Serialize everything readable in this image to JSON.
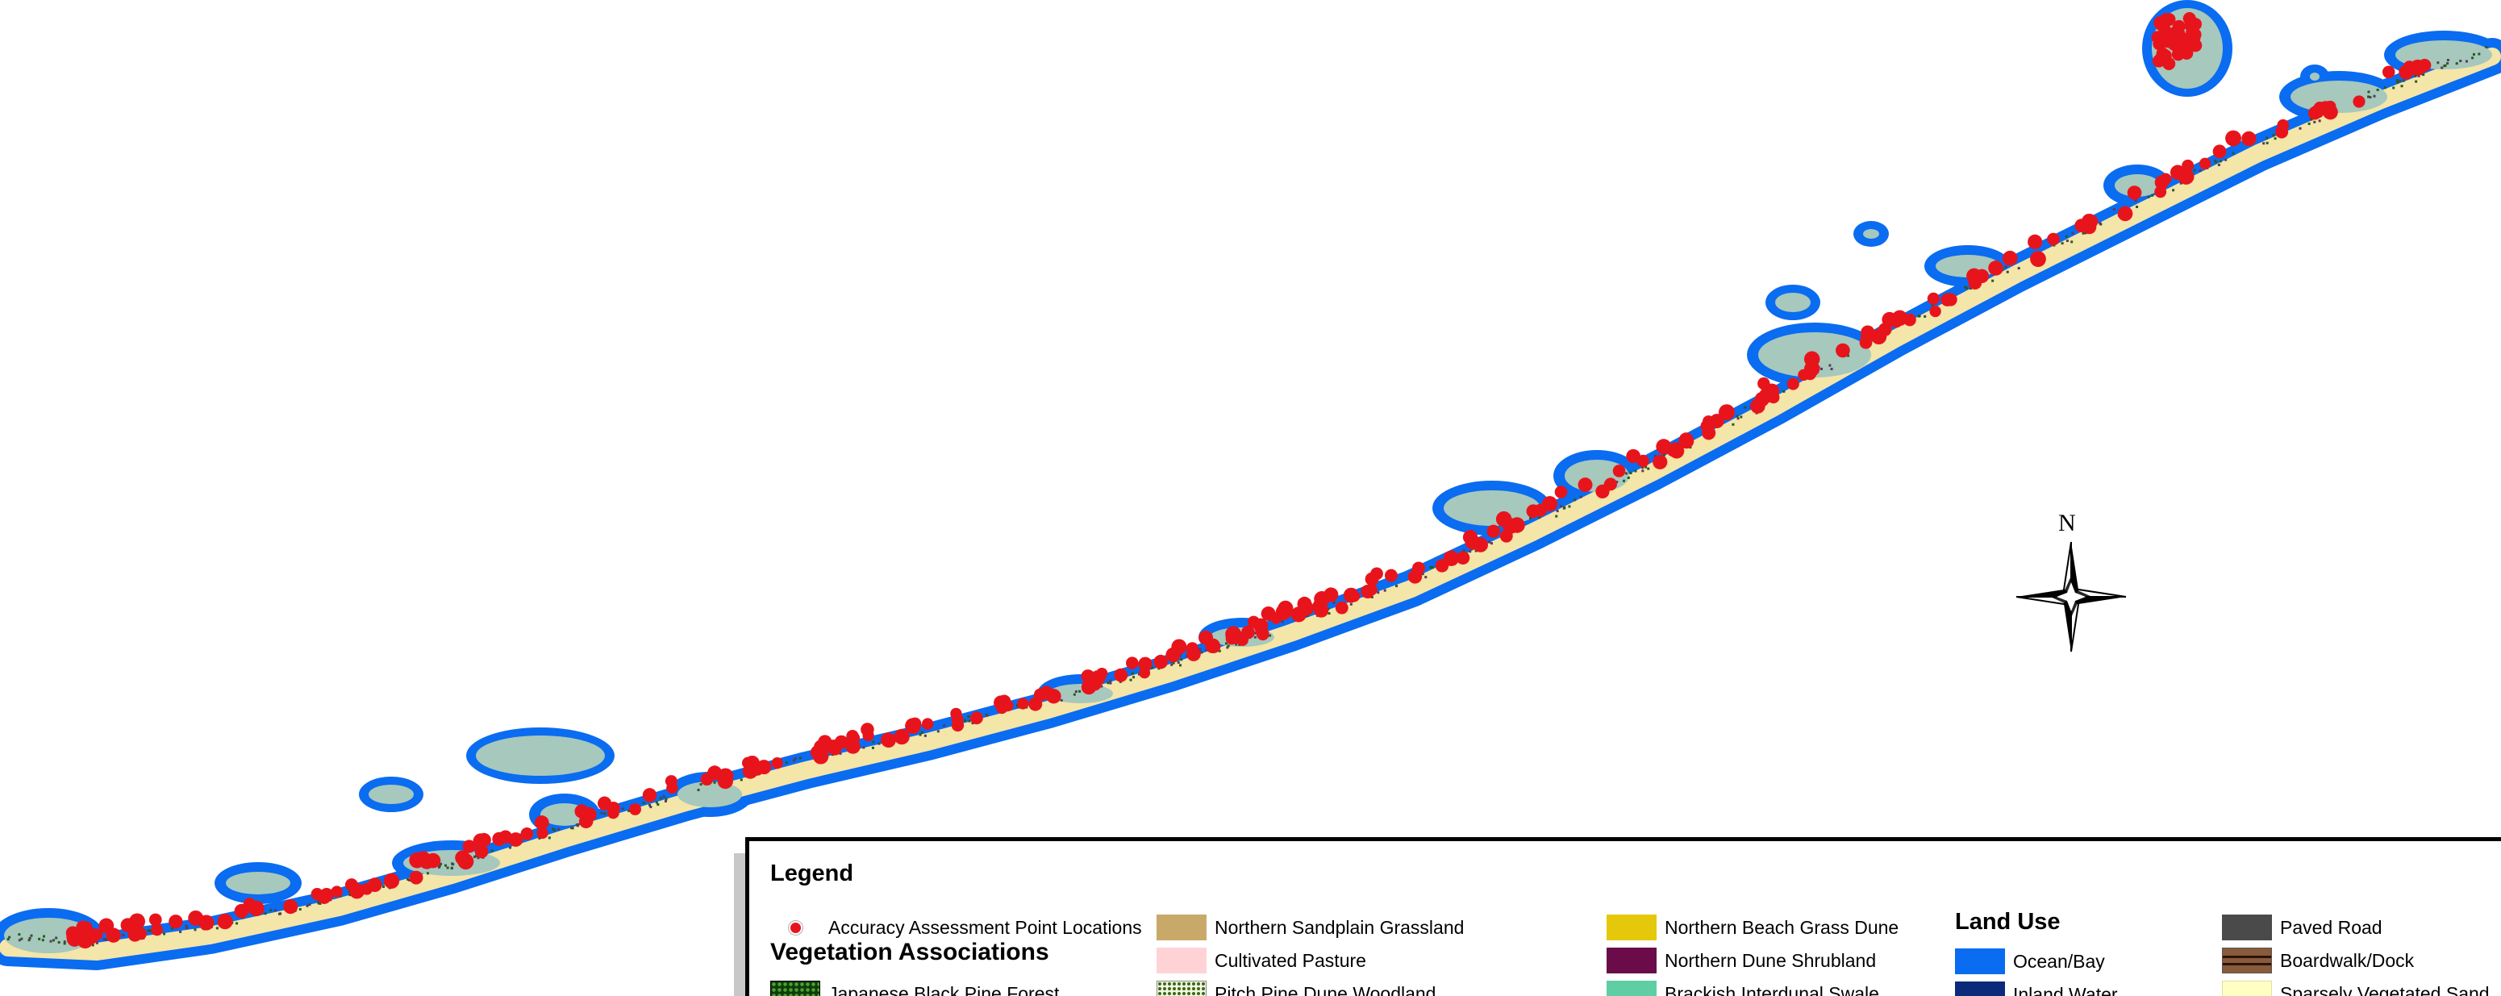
{
  "map": {
    "colors": {
      "ocean": "#0a6cf0",
      "sand": "#f4e5a8",
      "vegetation": "#a6c8bd",
      "shrub": "#2b5a1f",
      "points": "#e8141c"
    },
    "north_label": "N",
    "north_icon": "compass-rose-icon"
  },
  "legend": {
    "title": "Legend",
    "point_item": {
      "label": "Accuracy Assessment Point Locations",
      "color": "#e8141c"
    },
    "vegetation_title": "Vegetation Associations",
    "vegetation_items": [
      {
        "label": "Japanese Black Pine Forest",
        "color": "#0f3d0a",
        "pattern": "dots"
      },
      {
        "label": "Northern Sandplain Grassland",
        "color": "#c9a96a"
      },
      {
        "label": "Cultivated Pasture",
        "color": "#ffd3d6"
      },
      {
        "label": "Pitch Pine Dune Woodland",
        "color": "#f4f8e0",
        "pattern": "dots"
      },
      {
        "label": "Northern Beach Grass Dune",
        "color": "#e6c80a"
      },
      {
        "label": "Northern Dune Shrubland",
        "color": "#6b0b4a"
      },
      {
        "label": "Brackish Interdunal Swale",
        "color": "#5fcfa3"
      }
    ],
    "land_use_title": "Land Use",
    "land_use_items": [
      {
        "label": "Ocean/Bay",
        "color": "#0a6cf0"
      },
      {
        "label": "Inland Water",
        "color": "#0b2b7a"
      }
    ],
    "other_items": [
      {
        "label": "Paved Road",
        "color": "#4a4a4a"
      },
      {
        "label": "Boardwalk/Dock",
        "color": "#8a5a3c",
        "pattern": "stripes"
      },
      {
        "label": "Sparsely Vegetated Sand",
        "color": "#ffffc4"
      }
    ]
  }
}
